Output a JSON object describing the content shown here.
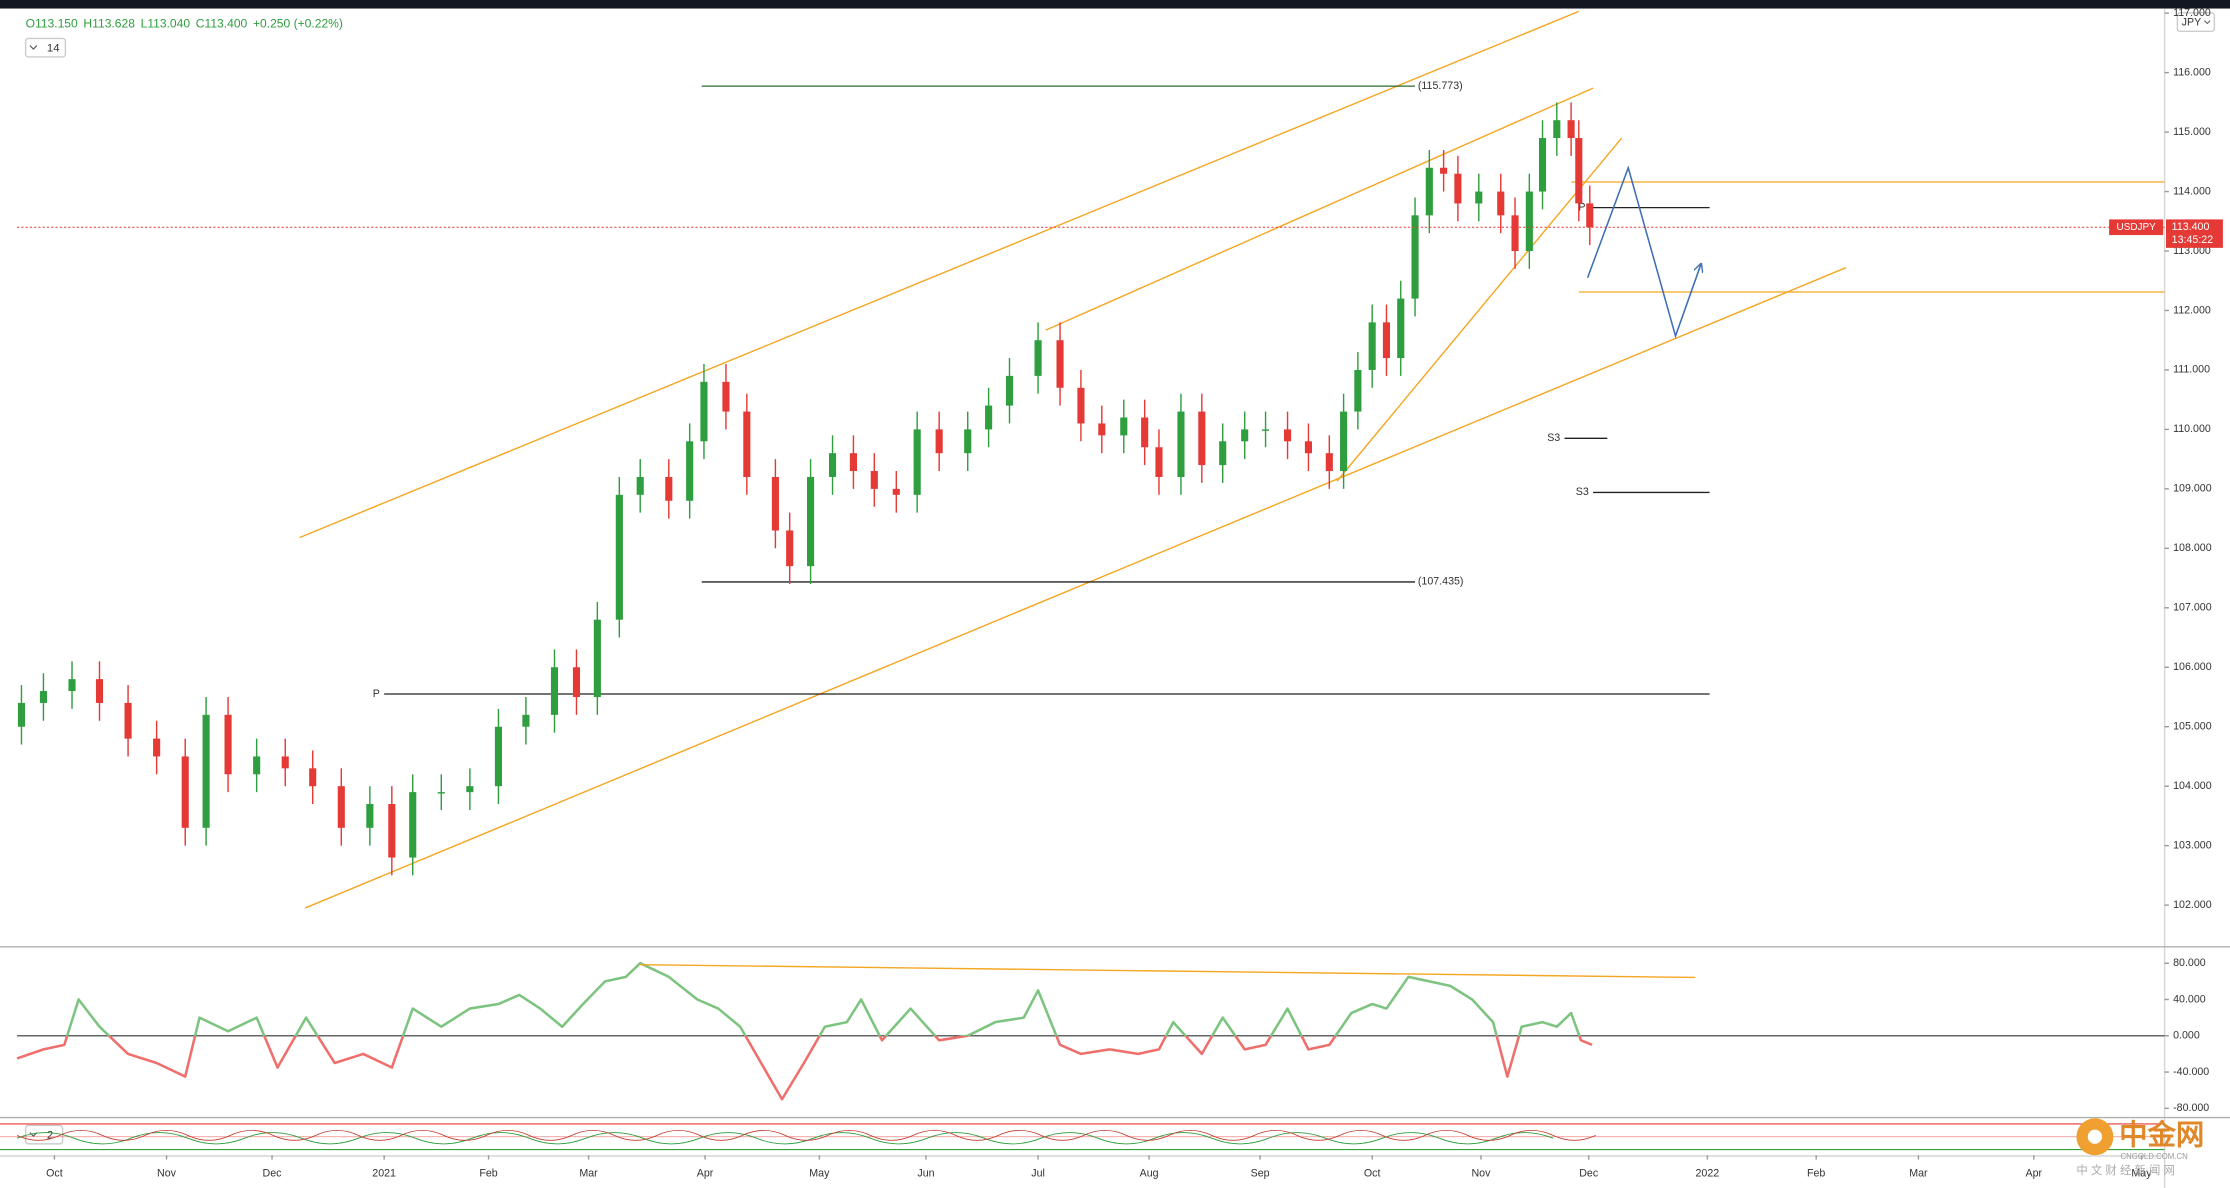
{
  "chart_data": {
    "type": "candlestick",
    "symbol": "USDJPY",
    "currency": "JPY",
    "indicator_count": "14",
    "ohlc_header": [
      "O113.150",
      "H113.628",
      "L113.040",
      "C113.400",
      "+0.250 (+0.22%)"
    ],
    "up_color": "#2e9e3e",
    "down_color": "#e53935",
    "xlim": [
      -0.34,
      19.2
    ],
    "xticks": [
      {
        "value": 0,
        "label": "Oct"
      },
      {
        "value": 1.02,
        "label": "Nov"
      },
      {
        "value": 1.98,
        "label": "Dec"
      },
      {
        "value": 3.0,
        "label": "2021"
      },
      {
        "value": 3.95,
        "label": "Feb"
      },
      {
        "value": 4.86,
        "label": "Mar"
      },
      {
        "value": 5.92,
        "label": "Apr"
      },
      {
        "value": 6.96,
        "label": "May"
      },
      {
        "value": 7.93,
        "label": "Jun"
      },
      {
        "value": 8.95,
        "label": "Jul"
      },
      {
        "value": 9.96,
        "label": "Aug"
      },
      {
        "value": 10.97,
        "label": "Sep"
      },
      {
        "value": 11.99,
        "label": "Oct"
      },
      {
        "value": 12.98,
        "label": "Nov"
      },
      {
        "value": 13.96,
        "label": "Dec"
      },
      {
        "value": 15.04,
        "label": "2022"
      },
      {
        "value": 16.03,
        "label": "Feb"
      },
      {
        "value": 16.96,
        "label": "Mar"
      },
      {
        "value": 18.01,
        "label": "Apr"
      },
      {
        "value": 18.99,
        "label": "May"
      }
    ],
    "ylim": [
      101.31,
      117.03
    ],
    "yticks": [
      {
        "value": 102,
        "label": "102.000"
      },
      {
        "value": 103,
        "label": "103.000"
      },
      {
        "value": 104,
        "label": "104.000"
      },
      {
        "value": 105,
        "label": "105.000"
      },
      {
        "value": 106,
        "label": "106.000"
      },
      {
        "value": 107,
        "label": "107.000"
      },
      {
        "value": 108,
        "label": "108.000"
      },
      {
        "value": 109,
        "label": "109.000"
      },
      {
        "value": 110,
        "label": "110.000"
      },
      {
        "value": 111,
        "label": "111.000"
      },
      {
        "value": 112,
        "label": "112.000"
      },
      {
        "value": 113,
        "label": "113.000"
      },
      {
        "value": 114,
        "label": "114.000"
      },
      {
        "value": 115,
        "label": "115.000"
      },
      {
        "value": 116,
        "label": "116.000"
      },
      {
        "value": 117,
        "label": "117.000"
      }
    ],
    "x": [
      -0.3,
      -0.1,
      0.16,
      0.41,
      0.67,
      0.93,
      1.19,
      1.38,
      1.58,
      1.84,
      2.1,
      2.35,
      2.61,
      2.87,
      3.07,
      3.26,
      3.52,
      3.78,
      4.04,
      4.29,
      4.55,
      4.75,
      4.94,
      5.14,
      5.33,
      5.59,
      5.78,
      5.91,
      6.11,
      6.3,
      6.56,
      6.69,
      6.88,
      7.08,
      7.27,
      7.46,
      7.66,
      7.85,
      8.05,
      8.31,
      8.5,
      8.69,
      8.95,
      9.15,
      9.34,
      9.53,
      9.73,
      9.92,
      10.05,
      10.25,
      10.44,
      10.63,
      10.83,
      11.02,
      11.22,
      11.41,
      11.6,
      11.73,
      11.86,
      11.99,
      12.12,
      12.25,
      12.38,
      12.51,
      12.64,
      12.77,
      12.96,
      13.16,
      13.29,
      13.42,
      13.54,
      13.67,
      13.8,
      13.87,
      13.97
    ],
    "open": [
      105.0,
      105.4,
      105.6,
      105.8,
      105.4,
      104.8,
      104.5,
      103.3,
      105.2,
      104.2,
      104.5,
      104.3,
      104.0,
      103.3,
      103.7,
      102.8,
      103.9,
      103.9,
      104.0,
      105.0,
      105.2,
      106.0,
      105.5,
      106.8,
      108.9,
      109.2,
      108.8,
      109.8,
      110.8,
      110.3,
      109.2,
      108.3,
      107.7,
      109.2,
      109.6,
      109.3,
      109.0,
      108.9,
      110.0,
      109.6,
      110.0,
      110.4,
      110.9,
      111.5,
      110.7,
      110.1,
      109.9,
      110.2,
      109.7,
      109.2,
      110.3,
      109.4,
      109.8,
      110.0,
      110.0,
      109.8,
      109.6,
      109.3,
      110.3,
      111.0,
      111.8,
      111.2,
      112.2,
      113.6,
      114.4,
      114.3,
      113.8,
      114.0,
      113.6,
      113.0,
      114.0,
      114.9,
      115.2,
      114.9,
      113.8
    ],
    "high": [
      105.7,
      105.9,
      106.1,
      106.1,
      105.7,
      105.1,
      104.8,
      105.5,
      105.5,
      104.8,
      104.8,
      104.6,
      104.3,
      104.0,
      104.0,
      104.2,
      104.2,
      104.3,
      105.3,
      105.5,
      106.3,
      106.3,
      107.1,
      109.2,
      109.5,
      109.5,
      110.1,
      111.1,
      111.1,
      110.6,
      109.5,
      108.6,
      109.5,
      109.9,
      109.9,
      109.6,
      109.3,
      110.3,
      110.3,
      110.3,
      110.7,
      111.2,
      111.8,
      111.8,
      111.0,
      110.4,
      110.5,
      110.5,
      110.0,
      110.6,
      110.6,
      110.1,
      110.3,
      110.3,
      110.3,
      110.1,
      109.9,
      110.6,
      111.3,
      112.1,
      112.1,
      112.5,
      113.9,
      114.7,
      114.7,
      114.6,
      114.3,
      114.3,
      113.9,
      114.3,
      115.2,
      115.5,
      115.5,
      115.2,
      114.1
    ],
    "low": [
      104.7,
      105.1,
      105.3,
      105.1,
      104.5,
      104.2,
      103.0,
      103.0,
      103.9,
      103.9,
      104.0,
      103.7,
      103.0,
      103.0,
      102.5,
      102.5,
      103.6,
      103.6,
      103.7,
      104.7,
      104.9,
      105.2,
      105.2,
      106.5,
      108.6,
      108.5,
      108.5,
      109.5,
      110.0,
      108.9,
      108.0,
      107.4,
      107.4,
      108.9,
      109.0,
      108.7,
      108.6,
      108.6,
      109.3,
      109.3,
      109.7,
      110.1,
      110.6,
      110.4,
      109.8,
      109.6,
      109.6,
      109.4,
      108.9,
      108.9,
      109.1,
      109.1,
      109.5,
      109.7,
      109.5,
      109.3,
      109.0,
      109.0,
      110.0,
      110.7,
      110.9,
      110.9,
      111.9,
      113.3,
      114.0,
      113.5,
      113.5,
      113.3,
      112.7,
      112.7,
      113.7,
      114.6,
      114.6,
      113.5,
      113.1
    ],
    "close": [
      105.4,
      105.6,
      105.8,
      105.4,
      104.8,
      104.5,
      103.3,
      105.2,
      104.2,
      104.5,
      104.3,
      104.0,
      103.3,
      103.7,
      102.8,
      103.9,
      103.9,
      104.0,
      105.0,
      105.2,
      106.0,
      105.5,
      106.8,
      108.9,
      109.2,
      108.8,
      109.8,
      110.8,
      110.3,
      109.2,
      108.3,
      107.7,
      109.2,
      109.6,
      109.3,
      109.0,
      108.9,
      110.0,
      109.6,
      110.0,
      110.4,
      110.9,
      111.5,
      110.7,
      110.1,
      109.9,
      110.2,
      109.7,
      109.2,
      110.3,
      109.4,
      109.8,
      110.0,
      110.0,
      109.8,
      109.6,
      109.3,
      110.3,
      111.0,
      111.8,
      111.2,
      112.2,
      113.6,
      114.4,
      114.3,
      113.8,
      114.0,
      113.6,
      113.0,
      114.0,
      114.9,
      115.2,
      114.9,
      113.8,
      113.4
    ],
    "last_price": {
      "value": 113.4,
      "label": "113.400"
    },
    "countdown": "13:45:22",
    "levels": [
      {
        "value": 115.773,
        "label": "(115.773)",
        "x": [
          5.89,
          12.38
        ],
        "color": "#2e6b2e"
      },
      {
        "value": 107.435,
        "label": "(107.435)",
        "x": [
          5.89,
          12.38
        ],
        "color": "#222222"
      },
      {
        "value": 105.55,
        "label": "P",
        "x": [
          3.0,
          15.06
        ],
        "color": "#222222"
      },
      {
        "value": 113.73,
        "label": "P",
        "x": [
          13.97,
          15.06
        ],
        "color": "#222222"
      },
      {
        "value": 109.85,
        "label": "S3",
        "x": [
          13.74,
          14.13
        ],
        "color": "#222222"
      },
      {
        "value": 108.94,
        "label": "S3",
        "x": [
          14.0,
          15.06
        ],
        "color": "#222222"
      },
      {
        "value": 114.16,
        "x": [
          13.8,
          19.2
        ],
        "color": "#f5a623"
      },
      {
        "value": 112.31,
        "x": [
          13.87,
          19.2
        ],
        "color": "#f5a623"
      }
    ],
    "trendlines": [
      {
        "x": [
          2.23,
          13.87
        ],
        "y": [
          108.18,
          117.03
        ],
        "color": "#f5a623"
      },
      {
        "x": [
          9.02,
          14.0
        ],
        "y": [
          111.67,
          115.74
        ],
        "color": "#f5a623"
      },
      {
        "x": [
          2.28,
          16.3
        ],
        "y": [
          101.95,
          112.72
        ],
        "color": "#f5a623"
      },
      {
        "x": [
          11.67,
          14.26
        ],
        "y": [
          109.13,
          114.9
        ],
        "color": "#f5a623"
      }
    ],
    "projection": {
      "x": [
        13.95,
        14.32,
        14.75,
        14.98
      ],
      "y": [
        112.55,
        114.4,
        111.57,
        112.77
      ],
      "color": "#3f6fb5"
    },
    "oscillator": {
      "type": "line",
      "up_color": "#7cc47f",
      "down_color": "#ef6f6c",
      "ylim": [
        -89.4,
        95.7
      ],
      "yticks": [
        {
          "value": 80,
          "label": "80.000"
        },
        {
          "value": 40,
          "label": "40.000"
        },
        {
          "value": 0,
          "label": "0.000"
        },
        {
          "value": -40,
          "label": "-40.000"
        },
        {
          "value": -80,
          "label": "-80.000"
        }
      ],
      "x": [
        -0.34,
        -0.1,
        0.09,
        0.22,
        0.41,
        0.67,
        0.93,
        1.19,
        1.32,
        1.58,
        1.84,
        2.03,
        2.29,
        2.55,
        2.81,
        3.07,
        3.26,
        3.52,
        3.78,
        4.04,
        4.23,
        4.42,
        4.62,
        4.81,
        5.01,
        5.2,
        5.33,
        5.59,
        5.85,
        6.04,
        6.24,
        6.43,
        6.62,
        6.82,
        7.01,
        7.21,
        7.34,
        7.53,
        7.79,
        8.05,
        8.31,
        8.56,
        8.82,
        8.95,
        9.15,
        9.34,
        9.6,
        9.86,
        10.05,
        10.18,
        10.44,
        10.63,
        10.83,
        11.02,
        11.22,
        11.41,
        11.6,
        11.8,
        11.99,
        12.12,
        12.32,
        12.51,
        12.7,
        12.9,
        13.09,
        13.22,
        13.35,
        13.54,
        13.67,
        13.8,
        13.89,
        13.99
      ],
      "values": [
        -25,
        -15,
        -10,
        40,
        10,
        -20,
        -30,
        -45,
        20,
        5,
        20,
        -35,
        20,
        -30,
        -20,
        -35,
        30,
        10,
        30,
        35,
        45,
        30,
        10,
        35,
        60,
        65,
        80,
        65,
        40,
        30,
        10,
        -30,
        -70,
        -30,
        10,
        15,
        40,
        -5,
        30,
        -5,
        0,
        15,
        20,
        50,
        -10,
        -20,
        -15,
        -20,
        -15,
        15,
        -20,
        20,
        -15,
        -10,
        30,
        -15,
        -10,
        25,
        35,
        30,
        65,
        60,
        55,
        40,
        15,
        -45,
        10,
        15,
        10,
        25,
        -5,
        -10
      ],
      "trendline": {
        "x": [
          5.33,
          14.93
        ],
        "y": [
          78.4,
          64.3
        ],
        "color": "#f5a623"
      }
    },
    "lower_pane_label": "2",
    "watermark": {
      "logo": "中金网",
      "domain": "CNGOLD.COM.CN",
      "tagline": "中 文 财 经 新 闻 网"
    }
  }
}
